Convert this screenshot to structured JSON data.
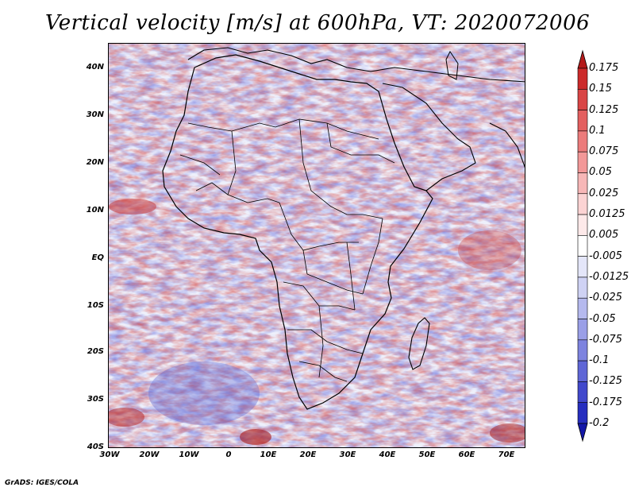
{
  "title": "Vertical velocity [m/s] at 600hPa, VT: 2020072006",
  "credit": "GrADS: IGES/COLA",
  "lat_labels": [
    "40N",
    "30N",
    "20N",
    "10N",
    "EQ",
    "10S",
    "20S",
    "30S",
    "40S"
  ],
  "lon_labels": [
    "30W",
    "20W",
    "10W",
    "0",
    "10E",
    "20E",
    "30E",
    "40E",
    "50E",
    "60E",
    "70E"
  ],
  "colorbar": {
    "labels": [
      "0.175",
      "0.15",
      "0.125",
      "0.1",
      "0.075",
      "0.05",
      "0.025",
      "0.0125",
      "0.005",
      "-0.005",
      "-0.0125",
      "-0.025",
      "-0.05",
      "-0.075",
      "-0.1",
      "-0.125",
      "-0.175",
      "-0.2"
    ],
    "colors": [
      "#b31a1a",
      "#cc2a2a",
      "#d94545",
      "#e35f5f",
      "#ec7b7b",
      "#f29898",
      "#f7b7b7",
      "#fbd3d3",
      "#fde9e9",
      "#ffffff",
      "#e4e6f9",
      "#cfd2f4",
      "#b5b9ee",
      "#9a9fe7",
      "#7d83df",
      "#5f66d6",
      "#4148cc",
      "#262ebf",
      "#1418a8"
    ]
  }
}
